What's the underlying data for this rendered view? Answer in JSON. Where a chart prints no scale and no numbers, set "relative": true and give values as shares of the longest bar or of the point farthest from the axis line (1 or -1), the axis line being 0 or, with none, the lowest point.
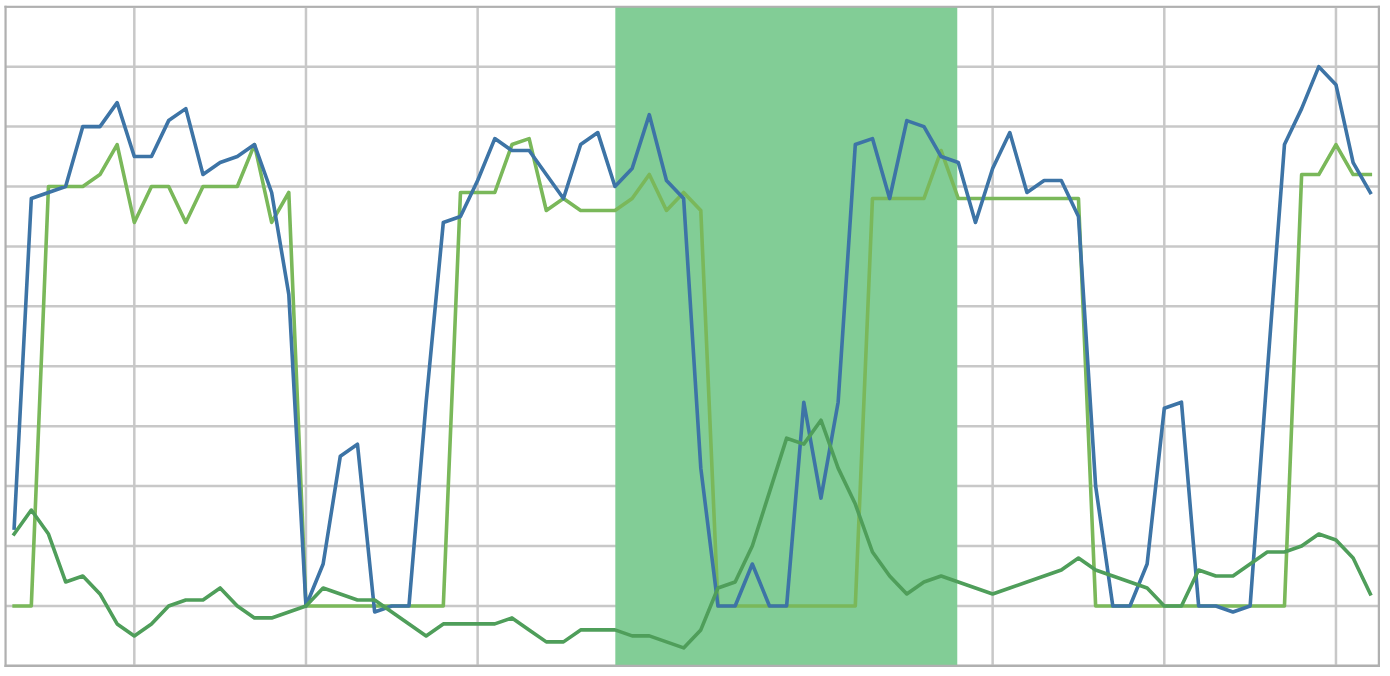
{
  "chart_data": {
    "type": "line",
    "relative": true,
    "grid": true,
    "categories": [
      null,
      null,
      null,
      null,
      null,
      null,
      null,
      null,
      null,
      null,
      null,
      null,
      null,
      null,
      null,
      null,
      null,
      null,
      null,
      null,
      null,
      null,
      null,
      null,
      null,
      null,
      null,
      null,
      null,
      null,
      null,
      null,
      null,
      null,
      null,
      null,
      null,
      null,
      null,
      null,
      null,
      null,
      null,
      null,
      null,
      null,
      null,
      null,
      null,
      null,
      null,
      null,
      null,
      null,
      null,
      null,
      null,
      null,
      null,
      null,
      null,
      null,
      null,
      null,
      null,
      null,
      null,
      null,
      null,
      null,
      null,
      null,
      null,
      null,
      null,
      null,
      null,
      null,
      null,
      null
    ],
    "series": [
      {
        "color": "#7ab85a",
        "values": [
          0.1,
          0.1,
          0.8,
          0.8,
          0.8,
          0.82,
          0.87,
          0.74,
          0.8,
          0.8,
          0.74,
          0.8,
          0.8,
          0.8,
          0.87,
          0.74,
          0.79,
          0.1,
          0.1,
          0.1,
          0.1,
          0.1,
          0.1,
          0.1,
          0.1,
          0.1,
          0.79,
          0.79,
          0.79,
          0.87,
          0.88,
          0.76,
          0.78,
          0.76,
          0.76,
          0.76,
          0.78,
          0.82,
          0.76,
          0.79,
          0.76,
          0.1,
          0.1,
          0.1,
          0.1,
          0.1,
          0.1,
          0.1,
          0.1,
          0.1,
          0.78,
          0.78,
          0.78,
          0.78,
          0.86,
          0.78,
          0.78,
          0.78,
          0.78,
          0.78,
          0.78,
          0.78,
          0.78,
          0.1,
          0.1,
          0.1,
          0.1,
          0.1,
          0.1,
          0.1,
          0.1,
          0.1,
          0.1,
          0.1,
          0.1,
          0.82,
          0.82,
          0.87,
          0.82,
          0.82
        ]
      },
      {
        "color": "#3d74a6",
        "values": [
          0.23,
          0.78,
          0.79,
          0.8,
          0.9,
          0.9,
          0.94,
          0.85,
          0.85,
          0.91,
          0.93,
          0.82,
          0.84,
          0.85,
          0.87,
          0.79,
          0.62,
          0.1,
          0.17,
          0.35,
          0.37,
          0.09,
          0.1,
          0.1,
          0.44,
          0.74,
          0.75,
          0.81,
          0.88,
          0.86,
          0.86,
          0.82,
          0.78,
          0.87,
          0.89,
          0.8,
          0.83,
          0.92,
          0.81,
          0.78,
          0.33,
          0.1,
          0.1,
          0.17,
          0.1,
          0.1,
          0.44,
          0.28,
          0.44,
          0.87,
          0.88,
          0.78,
          0.91,
          0.9,
          0.85,
          0.84,
          0.74,
          0.83,
          0.89,
          0.79,
          0.81,
          0.81,
          0.75,
          0.3,
          0.1,
          0.1,
          0.17,
          0.43,
          0.44,
          0.1,
          0.1,
          0.09,
          0.1,
          0.49,
          0.87,
          0.93,
          1,
          0.97,
          0.84,
          0.79
        ]
      },
      {
        "color": "#4f9e5a",
        "values": [
          0.22,
          0.26,
          0.22,
          0.14,
          0.15,
          0.12,
          0.07,
          0.05,
          0.07,
          0.1,
          0.11,
          0.11,
          0.13,
          0.1,
          0.08,
          0.08,
          0.09,
          0.1,
          0.13,
          0.12,
          0.11,
          0.11,
          0.09,
          0.07,
          0.05,
          0.07,
          0.07,
          0.07,
          0.07,
          0.08,
          0.06,
          0.04,
          0.04,
          0.06,
          0.06,
          0.06,
          0.05,
          0.05,
          0.04,
          0.03,
          0.06,
          0.13,
          0.14,
          0.2,
          0.29,
          0.38,
          0.37,
          0.41,
          0.33,
          0.27,
          0.19,
          0.15,
          0.12,
          0.14,
          0.15,
          0.14,
          0.13,
          0.12,
          0.13,
          0.14,
          0.15,
          0.16,
          0.18,
          0.16,
          0.15,
          0.14,
          0.13,
          0.1,
          0.1,
          0.16,
          0.15,
          0.15,
          0.17,
          0.19,
          0.19,
          0.2,
          0.22,
          0.21,
          0.18,
          0.12
        ]
      }
    ]
  }
}
